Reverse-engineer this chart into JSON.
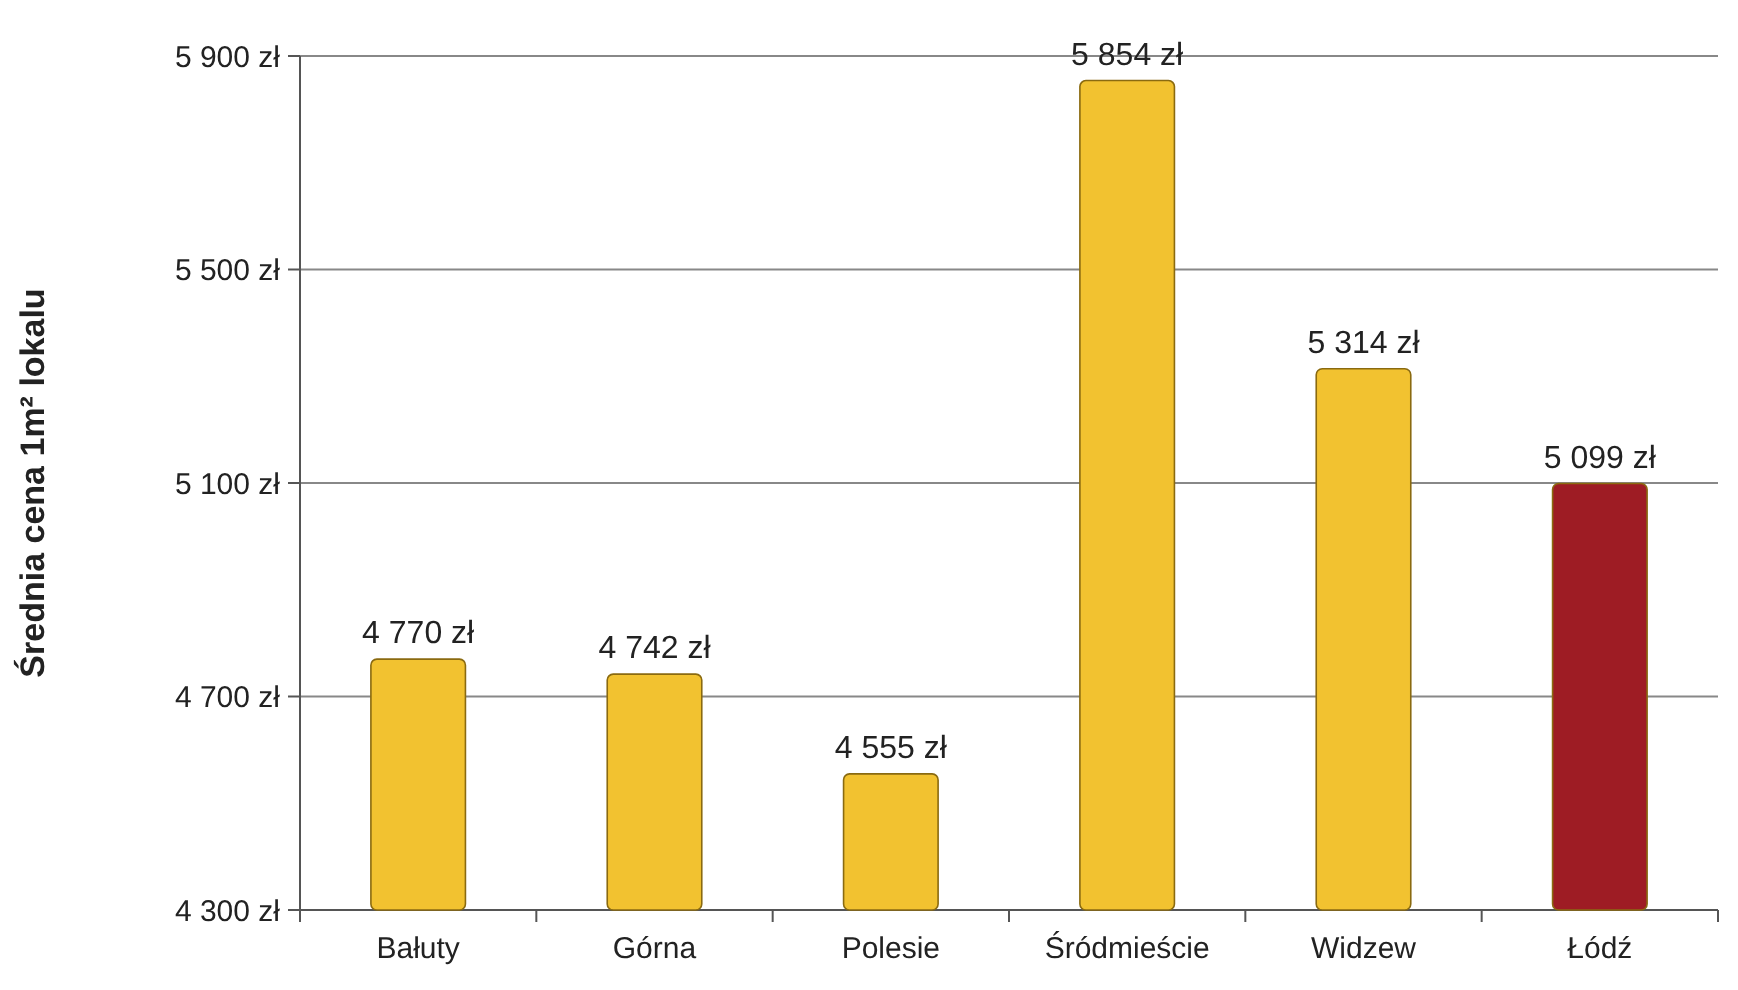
{
  "chart_data": {
    "type": "bar",
    "ylabel": "Średnia cena 1m² lokalu",
    "categories": [
      "Bałuty",
      "Górna",
      "Polesie",
      "Śródmieście",
      "Widzew",
      "Łódź"
    ],
    "values": [
      4770,
      4742,
      4555,
      5854,
      5314,
      5099
    ],
    "colors": [
      "#f2c230",
      "#f2c230",
      "#f2c230",
      "#f2c230",
      "#f2c230",
      "#9e1c24"
    ],
    "value_labels": [
      "4 770 zł",
      "4 742 zł",
      "4 555 zł",
      "5 854 zł",
      "5 314 zł",
      "5 099 zł"
    ],
    "ylim": [
      4300,
      5900
    ],
    "yticks": [
      {
        "value": 4300,
        "label": "4 300 zł"
      },
      {
        "value": 4700,
        "label": "4 700 zł"
      },
      {
        "value": 5100,
        "label": "5 100 zł"
      },
      {
        "value": 5500,
        "label": "5 500 zł"
      },
      {
        "value": 5900,
        "label": "5 900 zł"
      }
    ],
    "grid": "y"
  }
}
